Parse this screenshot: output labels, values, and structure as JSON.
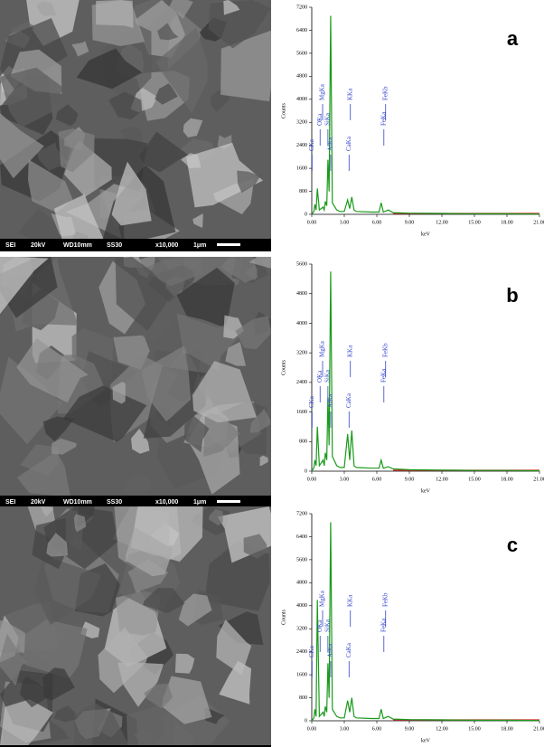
{
  "chart_data": [
    {
      "type": "line",
      "panel": "a",
      "xlabel": "keV",
      "ylabel": "Counts",
      "color": "#1a9a1a",
      "x": [
        0,
        0.2,
        0.28,
        0.4,
        0.52,
        0.7,
        1.04,
        1.15,
        1.25,
        1.38,
        1.49,
        1.6,
        1.74,
        1.9,
        2.3,
        2.6,
        3.0,
        3.31,
        3.5,
        3.69,
        3.9,
        4.1,
        5.5,
        6.2,
        6.4,
        6.6,
        7.06,
        7.5,
        9,
        12,
        15,
        18,
        21
      ],
      "values": [
        0,
        100,
        350,
        150,
        900,
        150,
        250,
        150,
        450,
        300,
        1900,
        800,
        6900,
        400,
        150,
        100,
        100,
        500,
        200,
        600,
        150,
        100,
        80,
        80,
        400,
        80,
        150,
        60,
        40,
        30,
        20,
        20,
        10
      ],
      "xlim": [
        0,
        21
      ],
      "ylim": [
        0,
        7200
      ],
      "xticks": [
        {
          "value": 0,
          "label": "0.00"
        },
        {
          "value": 3,
          "label": "3.00"
        },
        {
          "value": 6,
          "label": "6.00"
        },
        {
          "value": 9,
          "label": "9.00"
        },
        {
          "value": 12,
          "label": "12.00"
        },
        {
          "value": 15,
          "label": "15.00"
        },
        {
          "value": 18,
          "label": "18.00"
        },
        {
          "value": 21,
          "label": "21.00"
        }
      ],
      "yticks": [
        0,
        800,
        1600,
        2400,
        3200,
        4000,
        4800,
        5600,
        6400,
        7200
      ],
      "annotations": [
        {
          "text": "CKa",
          "x": 0.28
        },
        {
          "text": "OKa",
          "x": 0.52
        },
        {
          "text": "MgKa",
          "x": 1.25
        },
        {
          "text": "AlKa",
          "x": 1.49
        },
        {
          "text": "SiKa",
          "x": 1.74
        },
        {
          "text": "KKa",
          "x": 3.31
        },
        {
          "text": "CaKa",
          "x": 3.69
        },
        {
          "text": "FeKa",
          "x": 6.4
        },
        {
          "text": "FeKb",
          "x": 7.06
        }
      ]
    },
    {
      "type": "line",
      "panel": "b",
      "xlabel": "keV",
      "ylabel": "Counts",
      "color": "#1a9a1a",
      "x": [
        0,
        0.2,
        0.28,
        0.4,
        0.52,
        0.7,
        1.04,
        1.15,
        1.25,
        1.38,
        1.49,
        1.6,
        1.74,
        1.9,
        2.3,
        2.6,
        3.0,
        3.31,
        3.5,
        3.69,
        3.9,
        4.1,
        5.5,
        6.2,
        6.4,
        6.6,
        7.06,
        7.5,
        9,
        12,
        15,
        18,
        21
      ],
      "values": [
        0,
        100,
        300,
        150,
        1200,
        150,
        300,
        150,
        500,
        300,
        2000,
        700,
        5400,
        400,
        150,
        100,
        100,
        1000,
        300,
        1100,
        150,
        100,
        80,
        80,
        300,
        80,
        120,
        60,
        40,
        30,
        20,
        20,
        10
      ],
      "xlim": [
        0,
        21
      ],
      "ylim": [
        0,
        5600
      ],
      "xticks": [
        {
          "value": 0,
          "label": "0.00"
        },
        {
          "value": 3,
          "label": "3.00"
        },
        {
          "value": 6,
          "label": "6.00"
        },
        {
          "value": 9,
          "label": "9.00"
        },
        {
          "value": 12,
          "label": "12.00"
        },
        {
          "value": 15,
          "label": "15.00"
        },
        {
          "value": 18,
          "label": "18.00"
        },
        {
          "value": 21,
          "label": "21.00"
        }
      ],
      "yticks": [
        0,
        800,
        1600,
        2400,
        3200,
        4000,
        4800,
        5600
      ],
      "annotations": [
        {
          "text": "CKa",
          "x": 0.28
        },
        {
          "text": "OKa",
          "x": 0.52
        },
        {
          "text": "MgKa",
          "x": 1.25
        },
        {
          "text": "AlKa",
          "x": 1.49
        },
        {
          "text": "SiKa",
          "x": 1.74
        },
        {
          "text": "KKa",
          "x": 3.31
        },
        {
          "text": "CaKa",
          "x": 3.69
        },
        {
          "text": "FeKa",
          "x": 6.4
        },
        {
          "text": "FeKb",
          "x": 7.06
        }
      ]
    },
    {
      "type": "line",
      "panel": "c",
      "xlabel": "keV",
      "ylabel": "Counts",
      "color": "#1a9a1a",
      "x": [
        0,
        0.2,
        0.28,
        0.4,
        0.52,
        0.7,
        1.04,
        1.15,
        1.25,
        1.38,
        1.49,
        1.6,
        1.74,
        1.9,
        2.3,
        2.6,
        3.0,
        3.31,
        3.5,
        3.69,
        3.9,
        4.1,
        5.5,
        6.2,
        6.4,
        6.6,
        7.06,
        7.5,
        9,
        12,
        15,
        18,
        21
      ],
      "values": [
        0,
        100,
        400,
        150,
        4200,
        150,
        300,
        150,
        500,
        300,
        2000,
        800,
        6900,
        400,
        150,
        100,
        100,
        700,
        300,
        800,
        150,
        100,
        80,
        80,
        400,
        80,
        150,
        60,
        40,
        30,
        20,
        20,
        10
      ],
      "xlim": [
        0,
        21
      ],
      "ylim": [
        0,
        7200
      ],
      "xticks": [
        {
          "value": 0,
          "label": "0.00"
        },
        {
          "value": 3,
          "label": "3.00"
        },
        {
          "value": 6,
          "label": "6.00"
        },
        {
          "value": 9,
          "label": "9.00"
        },
        {
          "value": 12,
          "label": "12.00"
        },
        {
          "value": 15,
          "label": "15.00"
        },
        {
          "value": 18,
          "label": "18.00"
        },
        {
          "value": 21,
          "label": "21.00"
        }
      ],
      "yticks": [
        0,
        800,
        1600,
        2400,
        3200,
        4000,
        4800,
        5600,
        6400,
        7200
      ],
      "annotations": [
        {
          "text": "CKa",
          "x": 0.28
        },
        {
          "text": "OKa",
          "x": 0.52
        },
        {
          "text": "MgKa",
          "x": 1.25
        },
        {
          "text": "AlKa",
          "x": 1.49
        },
        {
          "text": "SiKa",
          "x": 1.74
        },
        {
          "text": "KKa",
          "x": 3.31
        },
        {
          "text": "CaKa",
          "x": 3.69
        },
        {
          "text": "FeKa",
          "x": 6.4
        },
        {
          "text": "FeKb",
          "x": 7.06
        }
      ]
    }
  ],
  "sem_images": [
    {
      "labels": [
        "SEI",
        "20kV",
        "WD10mm",
        "SS30",
        "x10,000",
        "1μm"
      ]
    },
    {
      "labels": [
        "SEI",
        "20kV",
        "WD10mm",
        "SS30",
        "x10,000",
        "1μm"
      ]
    },
    {
      "labels": [
        "SEI",
        "20kV",
        "WD10mm",
        "SS30",
        "x10,000",
        "1μm"
      ]
    }
  ]
}
